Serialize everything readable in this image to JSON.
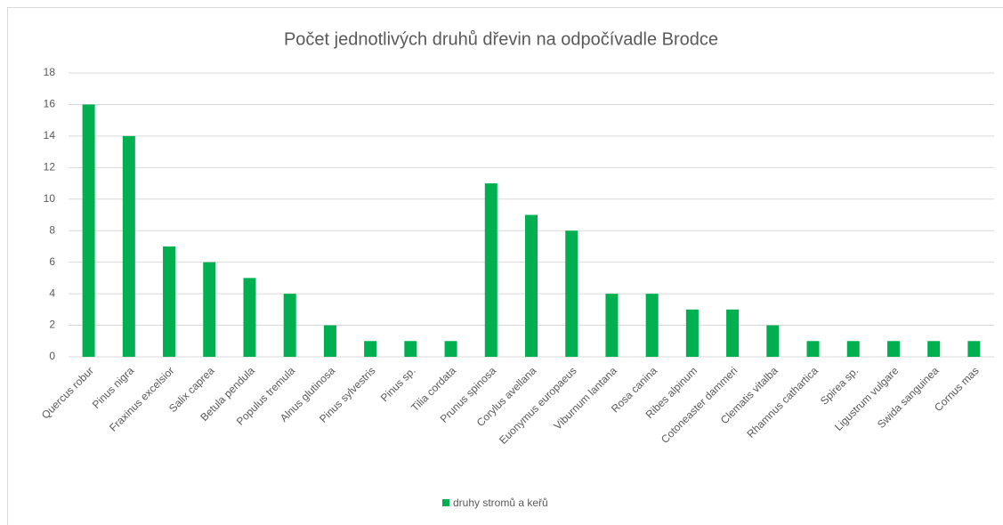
{
  "chart_data": {
    "type": "bar",
    "title": "Počet jednotlivých druhů dřevin na odpočívadle Brodce",
    "categories": [
      "Quercus robur",
      "Pinus nigra",
      "Fraxinus excelsior",
      "Salix caprea",
      "Betula pendula",
      "Populus tremula",
      "Alnus glutinosa",
      "Pinus sylvestris",
      "Pinus sp.",
      "Tilia cordata",
      "Prunus spinosa",
      "Corylus avellana",
      "Euonymus europaeus",
      "Viburnum lantana",
      "Rosa canina",
      "Ribes alpinum",
      "Cotoneaster dammeri",
      "Clematis vitalba",
      "Rhamnus cathartica",
      "Spirea sp.",
      "Ligustrum vulgare",
      "Swida sanguinea",
      "Cornus mas"
    ],
    "series": [
      {
        "name": "druhy stromů a keřů",
        "color": "#00b050",
        "values": [
          16,
          14,
          7,
          6,
          5,
          4,
          2,
          1,
          1,
          1,
          11,
          9,
          8,
          4,
          4,
          3,
          3,
          2,
          1,
          1,
          1,
          1,
          1
        ]
      }
    ],
    "ylim": [
      0,
      18
    ],
    "yticks": [
      0,
      2,
      4,
      6,
      8,
      10,
      12,
      14,
      16,
      18
    ],
    "grid": true,
    "legend": "bottom"
  }
}
